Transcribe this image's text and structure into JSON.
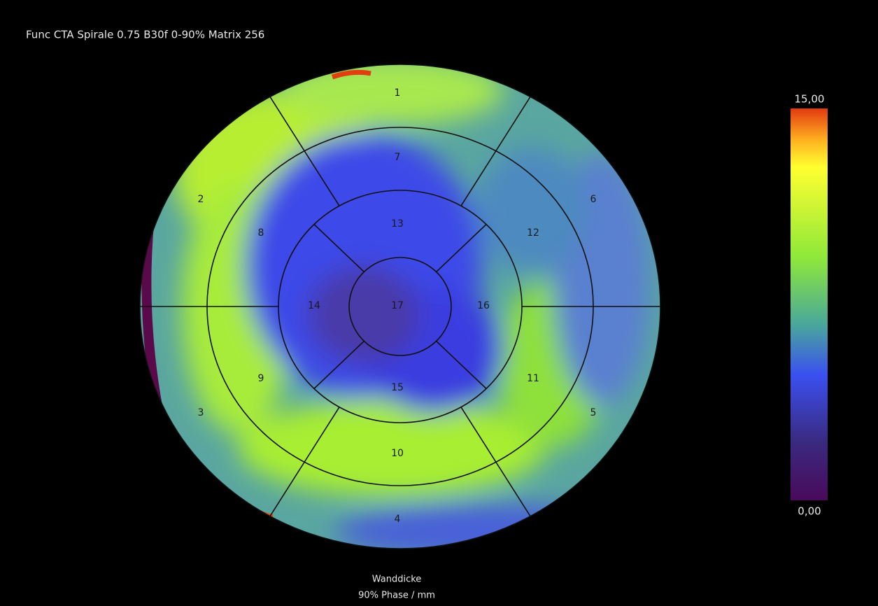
{
  "header": {
    "title": "Func  CTA Spirale  0.75  B30f  0-90%  Matrix 256"
  },
  "segments": [
    "1",
    "2",
    "3",
    "4",
    "5",
    "6",
    "7",
    "8",
    "9",
    "10",
    "11",
    "12",
    "13",
    "14",
    "15",
    "16",
    "17"
  ],
  "colorbar": {
    "max_label": "15,00",
    "min_label": "0,00"
  },
  "footer": {
    "line1": "Wanddicke",
    "line2": "90% Phase / mm"
  }
}
